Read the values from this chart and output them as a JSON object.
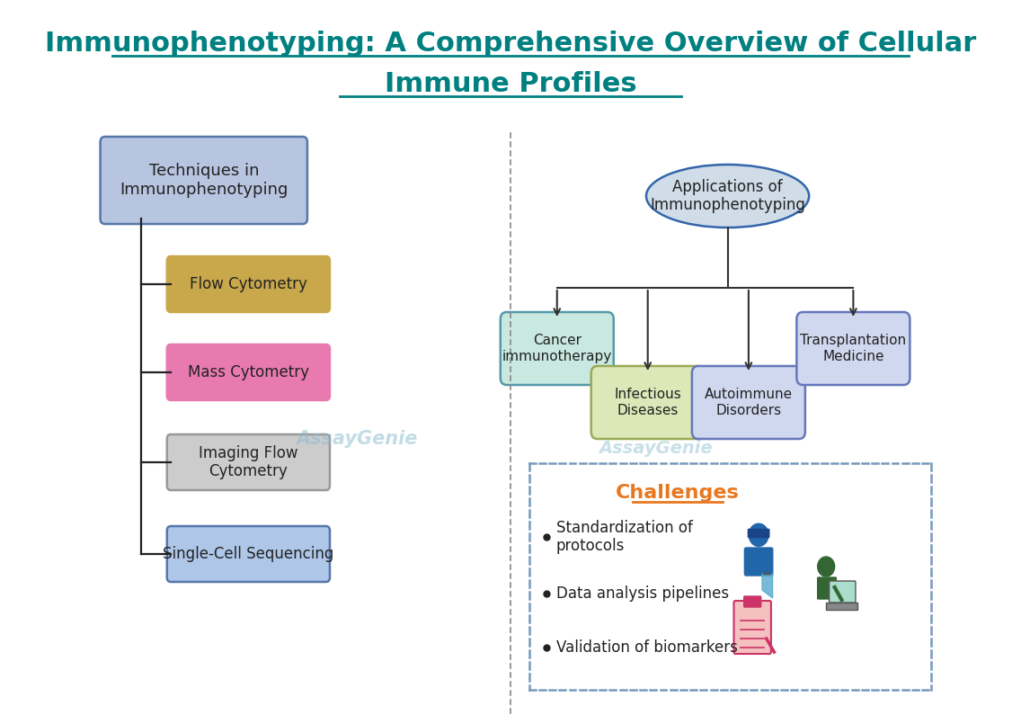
{
  "title_line1": "Immunophenotyping: A Comprehensive Overview of Cellular",
  "title_line2": "Immune Profiles",
  "title_color": "#008080",
  "title_fontsize": 22,
  "bg_color": "#ffffff",
  "divider_color": "#aaaaaa",
  "left_panel": {
    "root_label": "Techniques in\nImmunophenotyping",
    "root_box_color": "#b8c5e0",
    "root_box_edge": "#5577aa",
    "techniques": [
      {
        "label": "Flow Cytometry",
        "color": "#c8a84b",
        "edge": "#c8a84b"
      },
      {
        "label": "Mass Cytometry",
        "color": "#e87ab0",
        "edge": "#e87ab0"
      },
      {
        "label": "Imaging Flow\nCytometry",
        "color": "#cccccc",
        "edge": "#999999"
      },
      {
        "label": "Single-Cell Sequencing",
        "color": "#aec6e8",
        "edge": "#5577aa"
      }
    ]
  },
  "right_panel": {
    "root_label": "Applications of\nImmunophenotyping",
    "root_ellipse_color": "#d0dce8",
    "root_ellipse_edge": "#3366aa",
    "applications": [
      {
        "label": "Cancer\nimmunotherapy",
        "color": "#c8e8e0",
        "edge": "#5599aa"
      },
      {
        "label": "Infectious\nDiseases",
        "color": "#dce8b8",
        "edge": "#99aa55"
      },
      {
        "label": "Autoimmune\nDisorders",
        "color": "#d0d8f0",
        "edge": "#6677bb"
      },
      {
        "label": "Transplantation\nMedicine",
        "color": "#d0d8f0",
        "edge": "#6677bb"
      }
    ],
    "challenges_title": "Challenges",
    "challenges_title_color": "#e87820",
    "challenges_items": [
      "Standardization of\nprotocols",
      "Data analysis pipelines",
      "Validation of biomarkers"
    ],
    "challenges_box_edge": "#7799bb",
    "challenges_text_color": "#222222"
  },
  "assaygenie_watermark": "AssayGenie",
  "watermark_color": "#88bbcc"
}
